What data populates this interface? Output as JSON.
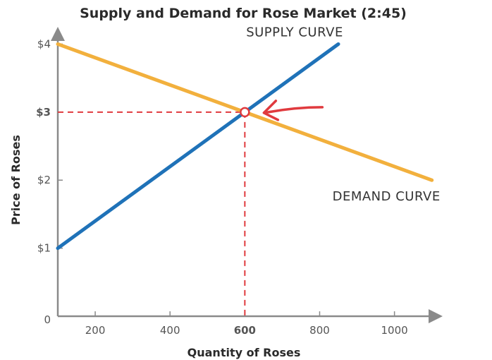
{
  "chart_data": {
    "type": "line",
    "title": "Supply and Demand for Rose Market (2:45)",
    "xlabel": "Quantity of Roses",
    "ylabel": "Price of Roses",
    "xlim": [
      100,
      1110
    ],
    "ylim": [
      0,
      4.15
    ],
    "x_ticks": [
      {
        "value": 200,
        "label": "200"
      },
      {
        "value": 400,
        "label": "400"
      },
      {
        "value": 600,
        "label": "600"
      },
      {
        "value": 800,
        "label": "800"
      },
      {
        "value": 1000,
        "label": "1000"
      }
    ],
    "y_ticks": [
      {
        "value": 0,
        "label": "0"
      },
      {
        "value": 1,
        "label": "$1"
      },
      {
        "value": 2,
        "label": "$2"
      },
      {
        "value": 3,
        "label": "$3"
      },
      {
        "value": 4,
        "label": "$4"
      }
    ],
    "series": [
      {
        "name": "SUPPLY CURVE",
        "color": "#1f72b8",
        "x": [
          100,
          850
        ],
        "y": [
          1.0,
          4.0
        ]
      },
      {
        "name": "DEMAND CURVE",
        "color": "#f2b03d",
        "x": [
          100,
          1100
        ],
        "y": [
          4.0,
          2.0
        ]
      }
    ],
    "equilibrium": {
      "x": 600,
      "y": 3,
      "x_label": "600",
      "y_label": "$3",
      "color": "#e03a3e"
    },
    "grid": false,
    "legend": "inline labels"
  }
}
